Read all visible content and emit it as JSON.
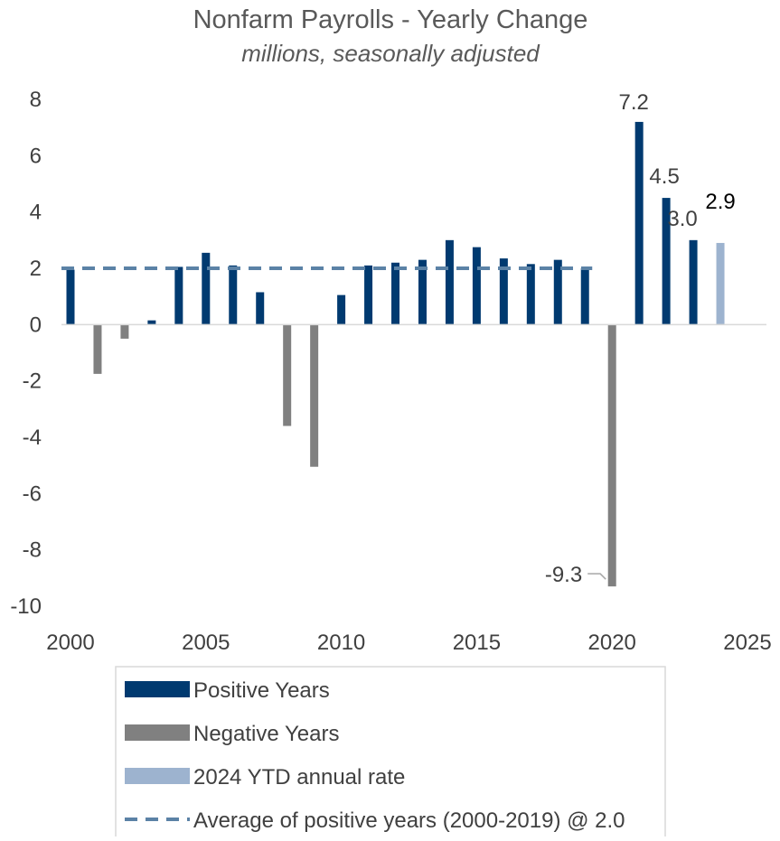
{
  "chart_data": {
    "type": "bar",
    "title": "Nonfarm Payrolls - Yearly Change",
    "subtitle": "millions, seasonally adjusted",
    "xlim": [
      2000,
      2025
    ],
    "ylim": [
      -10,
      8
    ],
    "yticks": [
      "8",
      "6",
      "4",
      "2",
      "0",
      "-2",
      "-4",
      "-6",
      "-8",
      "-10"
    ],
    "xticks": [
      "2000",
      "2005",
      "2010",
      "2015",
      "2020",
      "2025"
    ],
    "grid": false,
    "legend_position": "bottom",
    "colors": {
      "positive": "#003A70",
      "negative": "#808080",
      "ytd": "#9DB3CF",
      "average": "#5B82A6"
    },
    "series": [
      {
        "name": "Positive Years",
        "points": [
          {
            "x": 2000,
            "y": 1.95
          },
          {
            "x": 2003,
            "y": 0.15
          },
          {
            "x": 2004,
            "y": 2.05
          },
          {
            "x": 2005,
            "y": 2.55
          },
          {
            "x": 2006,
            "y": 2.1
          },
          {
            "x": 2007,
            "y": 1.15
          },
          {
            "x": 2010,
            "y": 1.05
          },
          {
            "x": 2011,
            "y": 2.1
          },
          {
            "x": 2012,
            "y": 2.2
          },
          {
            "x": 2013,
            "y": 2.3
          },
          {
            "x": 2014,
            "y": 3.0
          },
          {
            "x": 2015,
            "y": 2.75
          },
          {
            "x": 2016,
            "y": 2.35
          },
          {
            "x": 2017,
            "y": 2.15
          },
          {
            "x": 2018,
            "y": 2.3
          },
          {
            "x": 2019,
            "y": 2.0
          },
          {
            "x": 2021,
            "y": 7.2,
            "label": "7.2"
          },
          {
            "x": 2022,
            "y": 4.5,
            "label": "4.5"
          },
          {
            "x": 2023,
            "y": 3.0,
            "label": "3.0"
          }
        ]
      },
      {
        "name": "Negative Years",
        "points": [
          {
            "x": 2001,
            "y": -1.75
          },
          {
            "x": 2002,
            "y": -0.5
          },
          {
            "x": 2008,
            "y": -3.6
          },
          {
            "x": 2009,
            "y": -5.05
          },
          {
            "x": 2020,
            "y": -9.3,
            "label": "-9.3"
          }
        ]
      },
      {
        "name": "2024 YTD annual rate",
        "points": [
          {
            "x": 2024,
            "y": 2.9,
            "label": "2.9"
          }
        ]
      },
      {
        "name": "Average of positive years (2000-2019) @ 2.0",
        "type": "line",
        "style": "dashed",
        "x_range": [
          2000,
          2019
        ],
        "y": 2.0
      }
    ]
  }
}
